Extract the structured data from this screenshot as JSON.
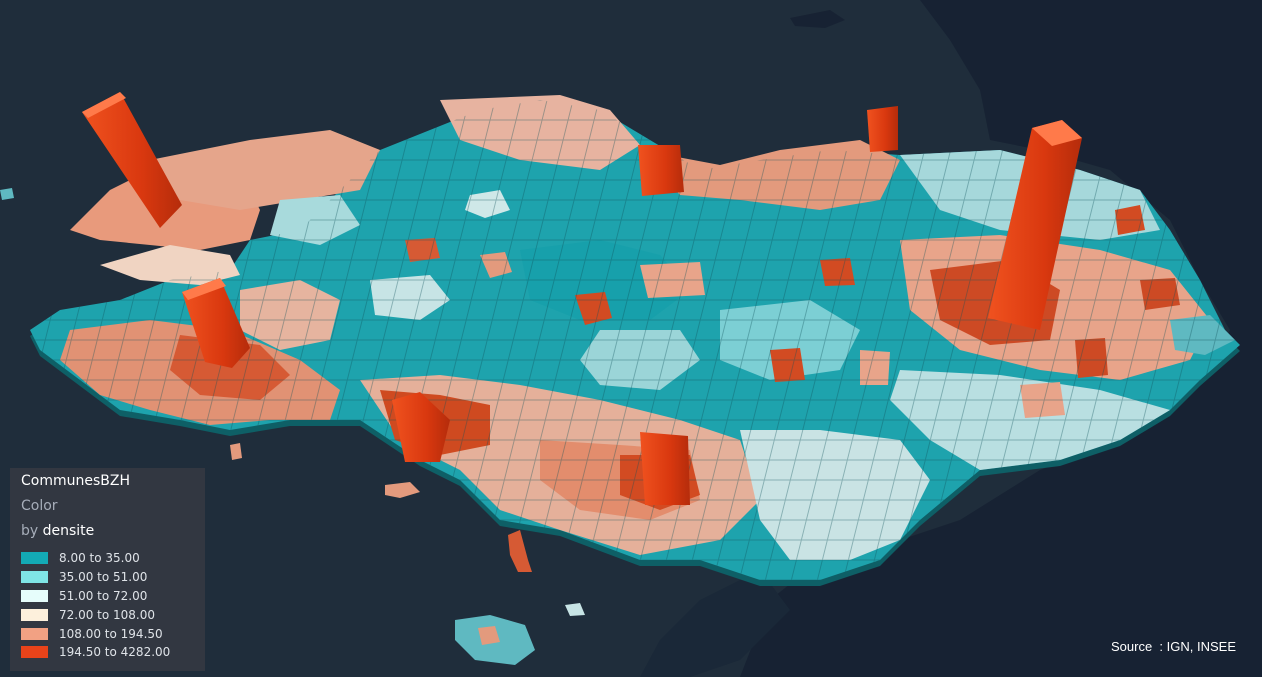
{
  "legend": {
    "layer_name": "CommunesBZH",
    "color_label": "Color",
    "by_prefix": "by",
    "field": "densite",
    "classes": [
      {
        "label": "8.00 to 35.00",
        "color": "#13aab5",
        "min": 8.0,
        "max": 35.0
      },
      {
        "label": "35.00 to 51.00",
        "color": "#7fe5e6",
        "min": 35.0,
        "max": 51.0
      },
      {
        "label": "51.00 to 72.00",
        "color": "#e6fdfb",
        "min": 51.0,
        "max": 72.0
      },
      {
        "label": "72.00 to 108.00",
        "color": "#fdf0dc",
        "min": 72.0,
        "max": 108.0
      },
      {
        "label": "108.00 to 194.50",
        "color": "#f2a183",
        "min": 108.0,
        "max": 194.5
      },
      {
        "label": "194.50 to 4282.00",
        "color": "#e8431a",
        "min": 194.5,
        "max": 4282.0
      }
    ]
  },
  "source_text": "Source  : IGN, INSEE",
  "colors": {
    "sea": "#1f2d3b",
    "land_outside": "#172233"
  }
}
